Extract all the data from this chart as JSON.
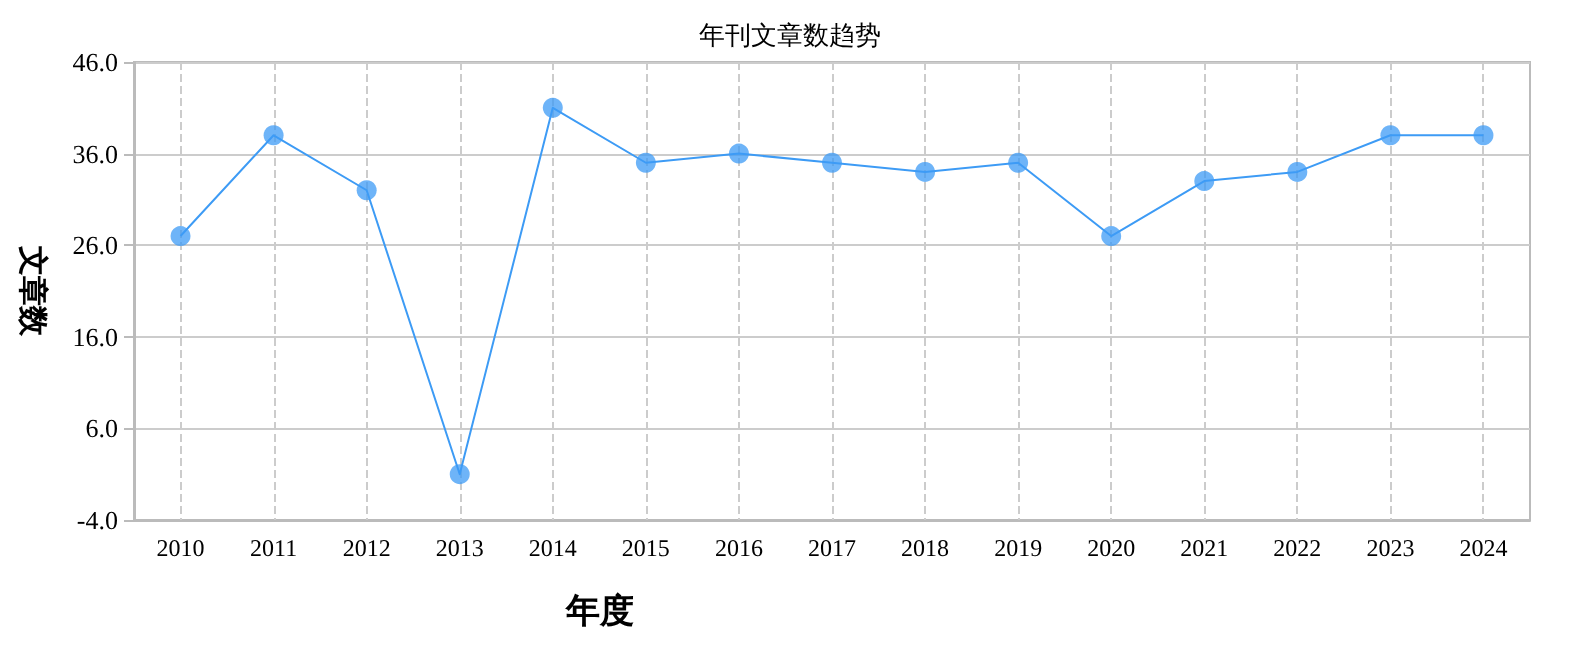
{
  "chart_data": {
    "type": "line",
    "title": "年刊文章数趋势",
    "xlabel": "年度",
    "ylabel": "文章数",
    "categories": [
      "2010",
      "2011",
      "2012",
      "2013",
      "2014",
      "2015",
      "2016",
      "2017",
      "2018",
      "2019",
      "2020",
      "2021",
      "2022",
      "2023",
      "2024"
    ],
    "series": [
      {
        "color": "#3d9bf5",
        "values": [
          27,
          38,
          32,
          1,
          41,
          35,
          36,
          35,
          34,
          35,
          27,
          33,
          34,
          38,
          38
        ]
      }
    ],
    "ylim": [
      -4,
      46
    ],
    "yticks": [
      {
        "value": -4,
        "label": "-4.0"
      },
      {
        "value": 6,
        "label": "6.0"
      },
      {
        "value": 16,
        "label": "16.0"
      },
      {
        "value": 26,
        "label": "26.0"
      },
      {
        "value": 36,
        "label": "36.0"
      },
      {
        "value": 46,
        "label": "46.0"
      }
    ],
    "grid": true,
    "marker": "circle",
    "line_style": "solid"
  }
}
